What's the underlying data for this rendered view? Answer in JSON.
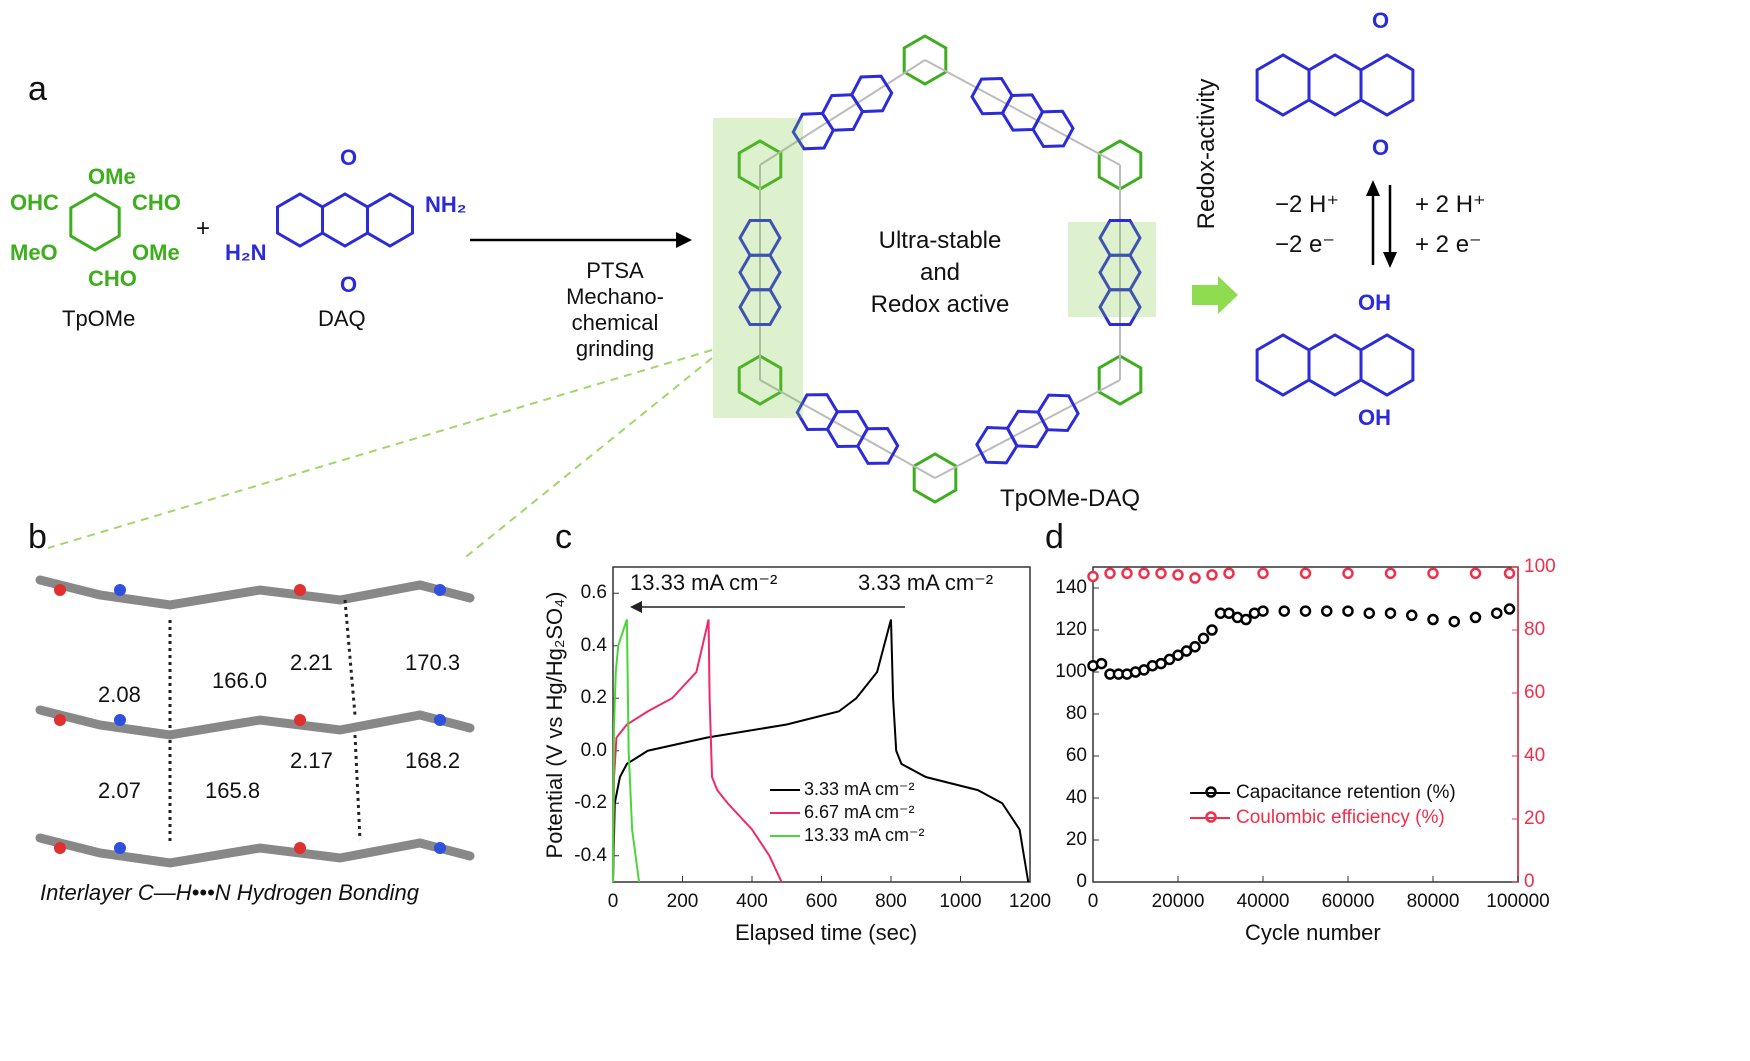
{
  "panels": {
    "a": "a",
    "b": "b",
    "c": "c",
    "d": "d"
  },
  "colors": {
    "tpome_green": "#3fae1e",
    "daq_blue": "#2b2bd9",
    "charge_black": "#000000",
    "charge_pink": "#ee2a6a",
    "charge_green": "#4cd53a",
    "ce_red": "#f0304a"
  },
  "scheme": {
    "plus": "+",
    "tpome": {
      "name": "TpOMe",
      "atoms": [
        "OMe",
        "OHC",
        "CHO",
        "MeO",
        "OMe",
        "CHO"
      ]
    },
    "daq": {
      "name": "DAQ",
      "atoms": [
        "O",
        "O",
        "H₂N",
        "NH₂"
      ]
    },
    "reaction": {
      "line1": "PTSA",
      "line2": "Mechano-chemical",
      "line3": "grinding"
    },
    "framework": {
      "name": "TpOMe-DAQ",
      "line1": "Ultra-stable",
      "line2": "and",
      "line3": "Redox active"
    },
    "redox_label": "Redox-activity",
    "quinone": {
      "atoms": [
        "O",
        "O"
      ]
    },
    "hydroquinone": {
      "atoms": [
        "OH",
        "OH"
      ]
    },
    "equilibrium": {
      "left1": "−2 H⁺",
      "left2": "−2 e⁻",
      "right1": "+ 2 H⁺",
      "right2": "+ 2 e⁻"
    }
  },
  "crystal": {
    "labels": [
      "2.08",
      "166.0",
      "2.21",
      "170.3",
      "2.07",
      "165.8",
      "2.17",
      "168.2"
    ],
    "caption": "Interlayer C—H•••N Hydrogen Bonding"
  },
  "chart_data": [
    {
      "type": "line",
      "xlabel": "Elapsed time (sec)",
      "ylabel": "Potential (V vs Hg/Hg₂SO₄)",
      "xlim": [
        0,
        1200
      ],
      "ylim": [
        -0.5,
        0.7
      ],
      "xticks": [
        "0",
        "200",
        "400",
        "600",
        "800",
        "1000",
        "1200"
      ],
      "yticks": [
        "-0.4",
        "-0.2",
        "0.0",
        "0.2",
        "0.4",
        "0.6"
      ],
      "annotation": {
        "left": "13.33 mA cm⁻²",
        "right": "3.33 mA cm⁻²"
      },
      "legend_position": "bottom-right",
      "series": [
        {
          "name": "3.33 mA cm⁻²",
          "color": "#000000",
          "x": [
            0,
            5,
            20,
            40,
            100,
            270,
            500,
            650,
            700,
            760,
            800,
            806,
            815,
            830,
            900,
            1050,
            1120,
            1170,
            1195
          ],
          "y": [
            -0.5,
            -0.2,
            -0.1,
            -0.05,
            0.0,
            0.05,
            0.1,
            0.15,
            0.2,
            0.3,
            0.5,
            0.2,
            0.0,
            -0.05,
            -0.1,
            -0.15,
            -0.2,
            -0.3,
            -0.5
          ]
        },
        {
          "name": "6.67 mA cm⁻²",
          "color": "#ee2a6a",
          "x": [
            0,
            3,
            10,
            40,
            100,
            170,
            240,
            275,
            278,
            285,
            300,
            330,
            400,
            450,
            485
          ],
          "y": [
            -0.5,
            -0.1,
            0.05,
            0.1,
            0.15,
            0.2,
            0.3,
            0.5,
            0.2,
            -0.1,
            -0.15,
            -0.2,
            -0.3,
            -0.4,
            -0.5
          ]
        },
        {
          "name": "13.33 mA cm⁻²",
          "color": "#4cd53a",
          "x": [
            0,
            3,
            8,
            15,
            40,
            45,
            55,
            75
          ],
          "y": [
            -0.5,
            0.1,
            0.3,
            0.4,
            0.5,
            0.0,
            -0.3,
            -0.5
          ]
        }
      ]
    },
    {
      "type": "scatter",
      "xlabel": "Cycle number",
      "xlim": [
        0,
        100000
      ],
      "ylim": [
        0,
        150
      ],
      "y2lim": [
        0,
        100
      ],
      "xticks": [
        "0",
        "20000",
        "40000",
        "60000",
        "80000",
        "100000"
      ],
      "yticks": [
        "0",
        "20",
        "40",
        "60",
        "80",
        "100",
        "120",
        "140"
      ],
      "y2ticks": [
        "0",
        "20",
        "40",
        "60",
        "80",
        "100"
      ],
      "legend_position": "bottom-right",
      "series": [
        {
          "name": "Capacitance retention (%)",
          "color": "#000000",
          "axis": "left",
          "x": [
            0,
            2000,
            4000,
            6000,
            8000,
            10000,
            12000,
            14000,
            16000,
            18000,
            20000,
            22000,
            24000,
            26000,
            28000,
            30000,
            32000,
            34000,
            36000,
            38000,
            40000,
            45000,
            50000,
            55000,
            60000,
            65000,
            70000,
            75000,
            80000,
            85000,
            90000,
            95000,
            98000
          ],
          "y": [
            103,
            104,
            99,
            99,
            99,
            100,
            101,
            103,
            104,
            106,
            108,
            110,
            112,
            116,
            120,
            128,
            128,
            126,
            125,
            128,
            129,
            129,
            129,
            129,
            129,
            128,
            128,
            127,
            125,
            124,
            126,
            128,
            130
          ]
        },
        {
          "name": "Coulombic efficiency (%)",
          "color": "#f0304a",
          "axis": "right",
          "x": [
            0,
            4000,
            8000,
            12000,
            16000,
            20000,
            24000,
            28000,
            32000,
            40000,
            50000,
            60000,
            70000,
            80000,
            90000,
            98000
          ],
          "y": [
            97,
            98,
            98,
            98,
            98,
            97.5,
            96.5,
            97.5,
            98,
            98,
            98,
            98,
            98,
            98,
            98,
            98
          ]
        }
      ]
    }
  ]
}
